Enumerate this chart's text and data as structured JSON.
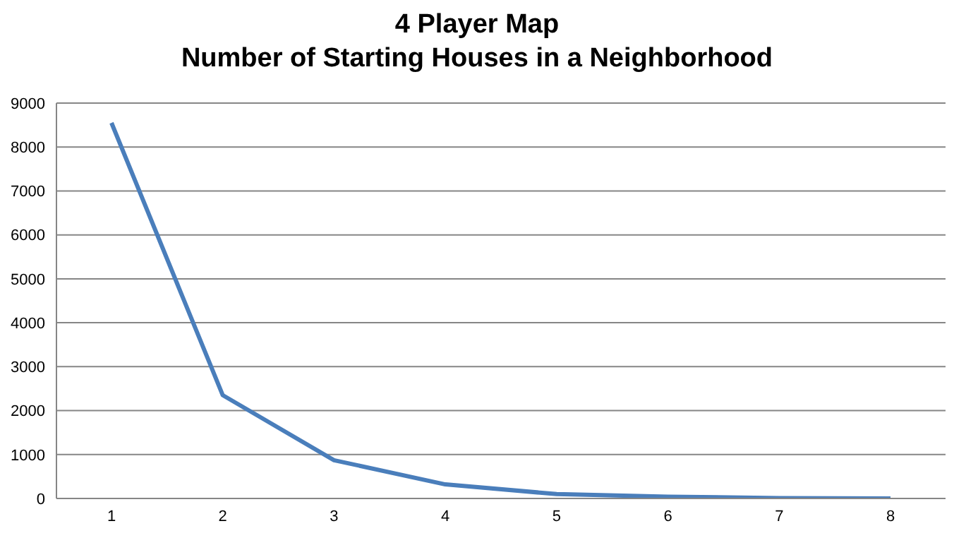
{
  "chart_data": {
    "type": "line",
    "title": "4 Player Map",
    "subtitle": "Number of Starting Houses in a Neighborhood",
    "categories": [
      "1",
      "2",
      "3",
      "4",
      "5",
      "6",
      "7",
      "8"
    ],
    "series": [
      {
        "color": "#4a7ebb",
        "values": [
          8550,
          2350,
          870,
          320,
          100,
          40,
          10,
          0
        ]
      }
    ],
    "ylim": [
      0,
      9000
    ],
    "yticks": [
      0,
      1000,
      2000,
      3000,
      4000,
      5000,
      6000,
      7000,
      8000,
      9000
    ],
    "grid": "y",
    "legend": false,
    "marker": "none",
    "line_style": "solid"
  }
}
